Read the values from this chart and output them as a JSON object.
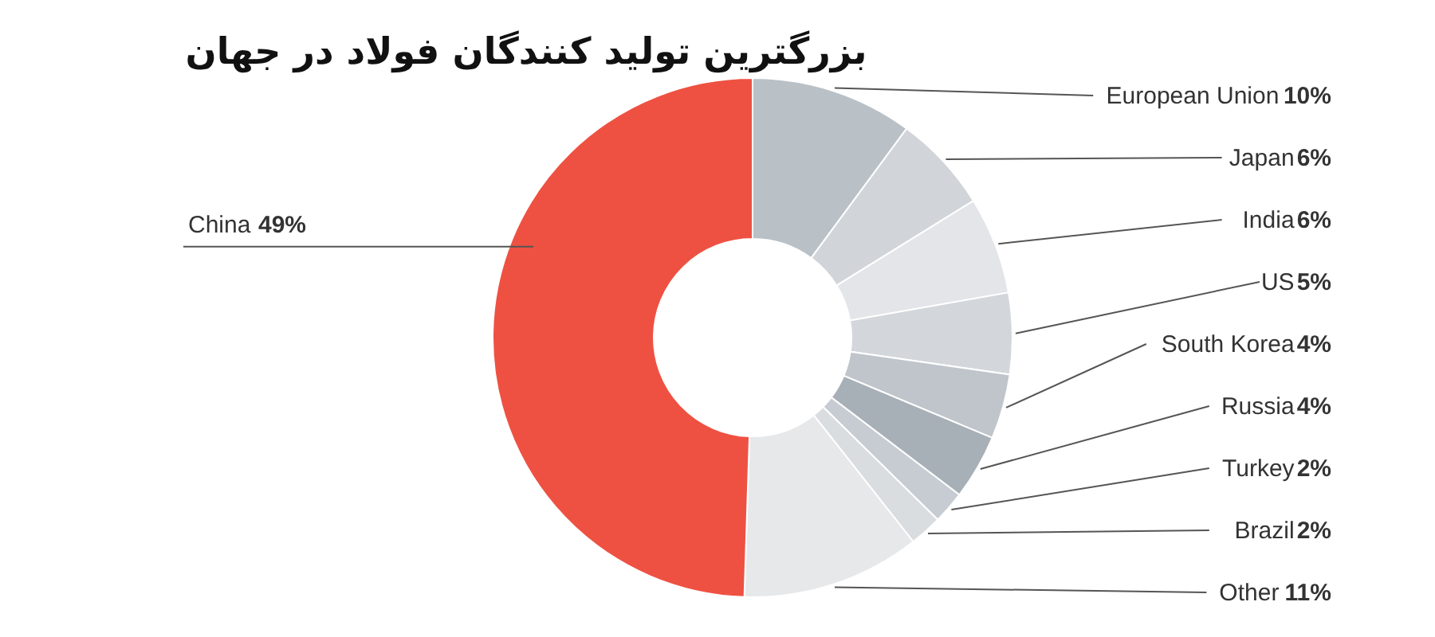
{
  "chart_data": {
    "type": "donut",
    "title": "بزرگترین تولید کنندگان فولاد در جهان",
    "categories": [
      "European Union",
      "Japan",
      "India",
      "US",
      "South Korea",
      "Russia",
      "Turkey",
      "Brazil",
      "Other",
      "China"
    ],
    "values": [
      10,
      6,
      6,
      5,
      4,
      4,
      2,
      2,
      11,
      49
    ],
    "value_labels": [
      "10%",
      "6%",
      "6%",
      "5%",
      "4%",
      "4%",
      "2%",
      "2%",
      "11%",
      "49%"
    ],
    "colors": [
      "#b9c1c7",
      "#d1d5d9",
      "#e3e5e8",
      "#d3d7db",
      "#bfc5ca",
      "#a8b0b7",
      "#c6ccd1",
      "#d9dde0",
      "#e7e8ea",
      "#ee5142"
    ]
  }
}
